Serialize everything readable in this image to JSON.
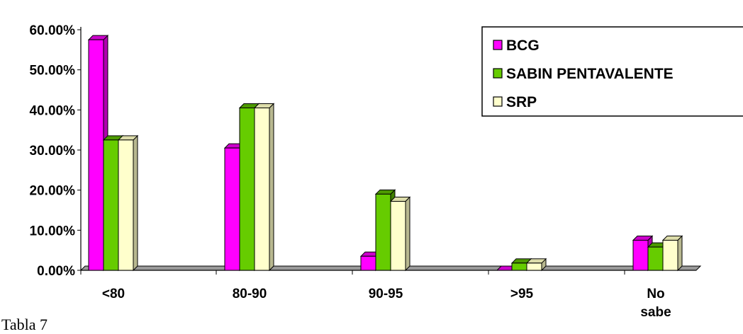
{
  "chart_data": {
    "type": "bar",
    "categories": [
      "<80",
      "80-90",
      "90-95",
      ">95",
      "No sabe"
    ],
    "series": [
      {
        "name": "BCG",
        "values": [
          57.5,
          30.5,
          3.5,
          0,
          7.5
        ],
        "color": "#ff00ff",
        "side": "#b000b0",
        "top": "#cc00cc"
      },
      {
        "name": "SABIN PENTAVALENTE",
        "values": [
          32.5,
          40.5,
          19.0,
          1.8,
          5.8
        ],
        "color": "#66cc00",
        "side": "#408000",
        "top": "#4d9900"
      },
      {
        "name": "SRP",
        "values": [
          32.5,
          40.5,
          17.2,
          1.8,
          7.5
        ],
        "color": "#ffffcc",
        "side": "#b8b890",
        "top": "#dcdcaa"
      }
    ],
    "yticks": [
      "0.00%",
      "10.00%",
      "20.00%",
      "30.00%",
      "40.00%",
      "50.00%",
      "60.00%"
    ],
    "ylim": [
      0,
      60
    ],
    "legend_position": "top-right"
  },
  "caption": "Tabla 7"
}
